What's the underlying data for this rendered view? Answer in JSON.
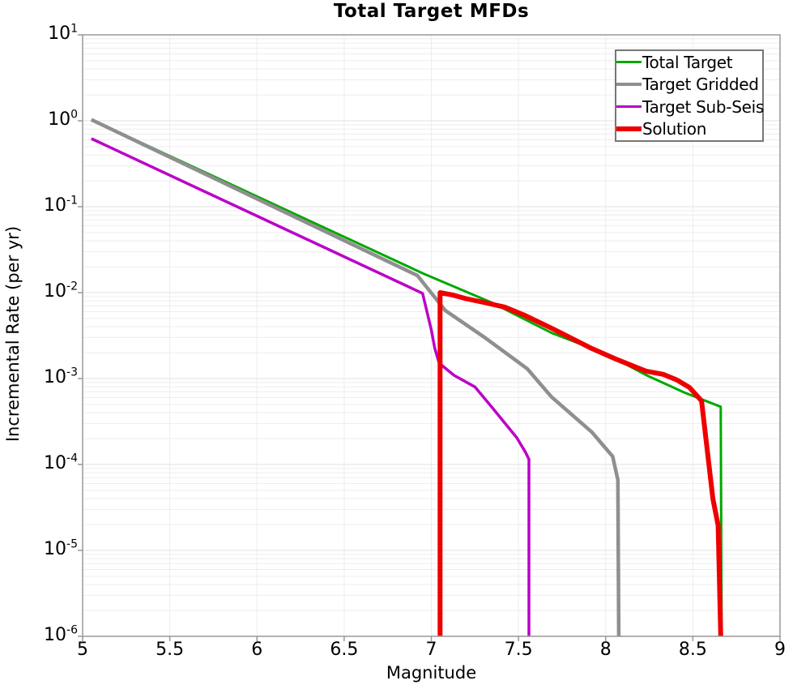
{
  "chart_data": {
    "type": "line",
    "title": "Total Target MFDs",
    "xlabel": "Magnitude",
    "ylabel": "Incremental Rate (per yr)",
    "x_axis": {
      "min": 5,
      "max": 9,
      "ticks": [
        5,
        5.5,
        6,
        6.5,
        7,
        7.5,
        8,
        8.5,
        9
      ]
    },
    "y_axis": {
      "scale": "log",
      "min_exp": -6,
      "max_exp": 1,
      "tick_exponents": [
        1,
        0,
        -1,
        -2,
        -3,
        -4,
        -5,
        -6
      ]
    },
    "grid": {
      "vertical_ticks": [
        5.5,
        6,
        6.5,
        7,
        7.5,
        8,
        8.5
      ],
      "log_minor_lines": true,
      "minor_color": "#ededed",
      "major_color": "#e2e2e2"
    },
    "legend_position": "top-right",
    "axis_color": "#999999",
    "series": [
      {
        "name": "Total Target",
        "color": "#00a800",
        "width": 3,
        "points": [
          [
            5.05,
            1.03
          ],
          [
            6.95,
            0.0168
          ],
          [
            7.35,
            0.0076
          ],
          [
            7.69,
            0.0034
          ],
          [
            8.0,
            0.00195
          ],
          [
            8.24,
            0.00108
          ],
          [
            8.45,
            0.00069
          ],
          [
            8.66,
            0.00047
          ],
          [
            8.665,
            1e-06
          ]
        ]
      },
      {
        "name": "Target Gridded",
        "color": "#8f8f8f",
        "width": 4.5,
        "points": [
          [
            5.05,
            1.03
          ],
          [
            6.92,
            0.0158
          ],
          [
            7.08,
            0.0062
          ],
          [
            7.31,
            0.00297
          ],
          [
            7.55,
            0.0013
          ],
          [
            7.69,
            0.00061
          ],
          [
            7.92,
            0.000239
          ],
          [
            8.04,
            0.000124
          ],
          [
            8.07,
            6.6e-05
          ],
          [
            8.075,
            1e-06
          ]
        ]
      },
      {
        "name": "Target Sub-Seis",
        "color": "#bb00c8",
        "width": 3.5,
        "points": [
          [
            5.05,
            0.62
          ],
          [
            6.95,
            0.0098
          ],
          [
            7.0,
            0.00368
          ],
          [
            7.02,
            0.00224
          ],
          [
            7.045,
            0.00151
          ],
          [
            7.13,
            0.00109
          ],
          [
            7.25,
            0.0008
          ],
          [
            7.35,
            0.000457
          ],
          [
            7.49,
            0.000205
          ],
          [
            7.54,
            0.000139
          ],
          [
            7.56,
            0.000115
          ],
          [
            7.56,
            1e-06
          ]
        ]
      },
      {
        "name": "Solution",
        "color": "#ee0000",
        "width": 6,
        "points": [
          [
            7.05,
            1e-06
          ],
          [
            7.05,
            0.01
          ],
          [
            7.12,
            0.0094
          ],
          [
            7.2,
            0.0085
          ],
          [
            7.3,
            0.0077
          ],
          [
            7.42,
            0.0068
          ],
          [
            7.53,
            0.0055
          ],
          [
            7.69,
            0.00385
          ],
          [
            7.92,
            0.00224
          ],
          [
            8.06,
            0.00168
          ],
          [
            8.23,
            0.00122
          ],
          [
            8.33,
            0.00112
          ],
          [
            8.41,
            0.00096
          ],
          [
            8.48,
            0.00079
          ],
          [
            8.55,
            0.00055
          ],
          [
            8.615,
            4e-05
          ],
          [
            8.645,
            1.95e-05
          ],
          [
            8.66,
            1e-06
          ]
        ]
      }
    ]
  }
}
